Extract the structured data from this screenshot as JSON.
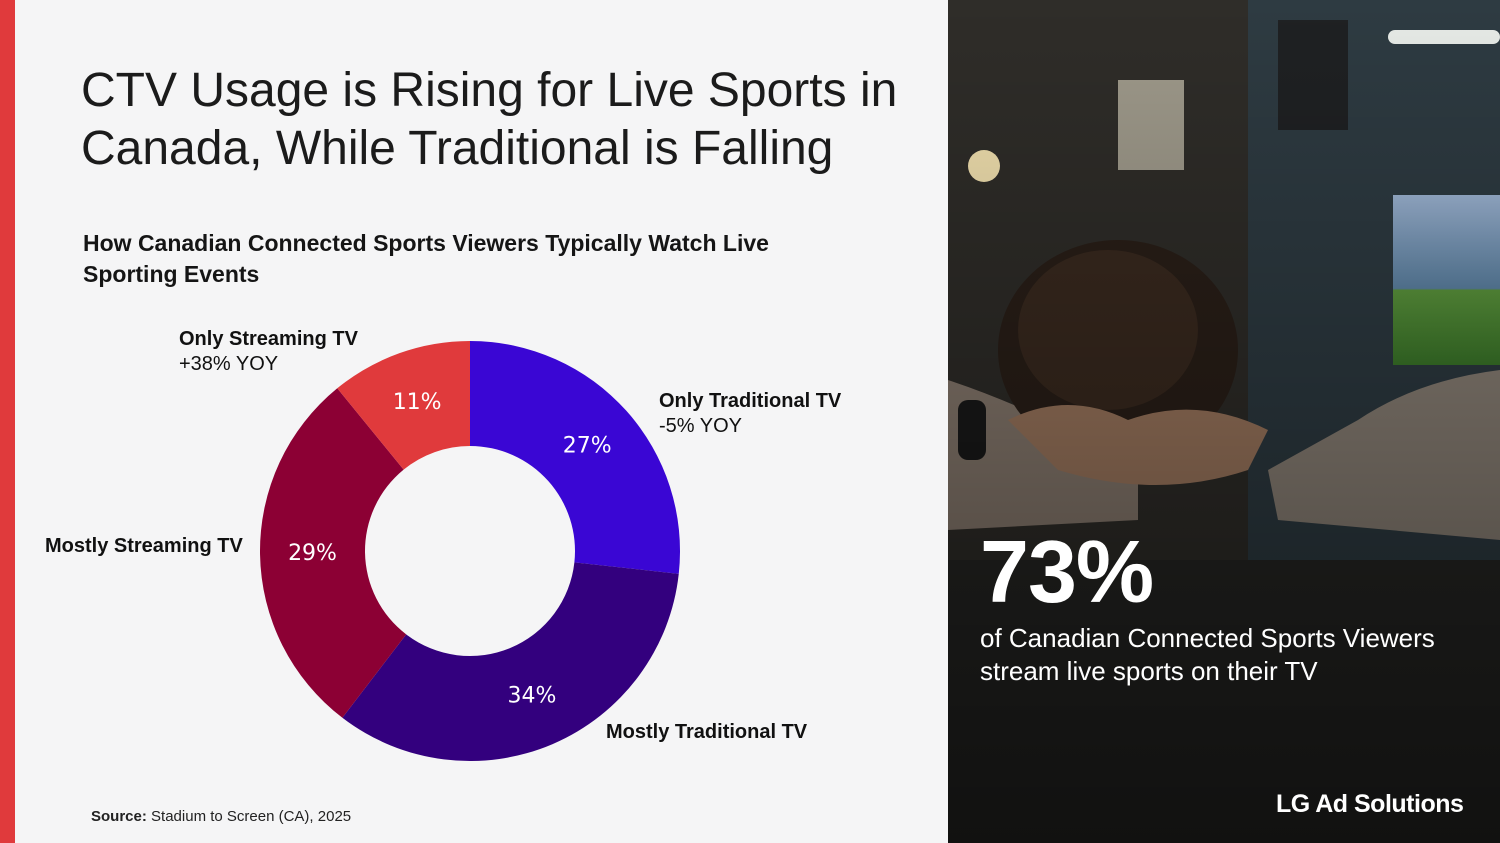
{
  "page": {
    "title": "CTV Usage is Rising for Live Sports in Canada, While Traditional is Falling",
    "source_label": "Source:",
    "source_text": "Stadium to Screen (CA), 2025"
  },
  "chart_data": {
    "type": "pie",
    "title": "How Canadian Connected Sports Viewers Typically Watch Live Sporting Events",
    "donut": true,
    "categories": [
      "Only Traditional TV",
      "Mostly Traditional TV",
      "Mostly Streaming TV",
      "Only Streaming TV"
    ],
    "values": [
      27,
      34,
      29,
      11
    ],
    "value_labels": [
      "27%",
      "34%",
      "29%",
      "11%"
    ],
    "colors": [
      "#3a06d4",
      "#33007e",
      "#8c0034",
      "#e03a3c"
    ],
    "annotations": {
      "Only Traditional TV": "-5% YOY",
      "Only Streaming TV": "+38% YOY"
    }
  },
  "stat": {
    "value": "73%",
    "caption": "of Canadian Connected Sports Viewers stream live sports on their TV"
  },
  "brand": {
    "name": "LG Ad Solutions"
  }
}
